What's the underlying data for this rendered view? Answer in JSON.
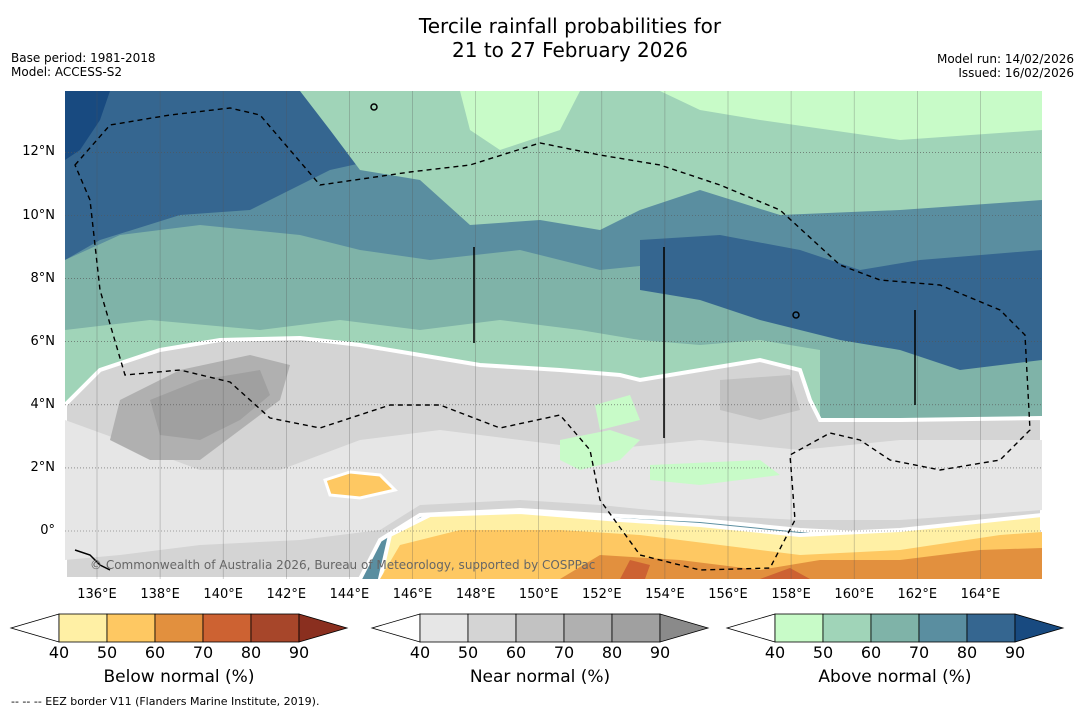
{
  "title": {
    "line1": "Tercile rainfall probabilities for",
    "line2": "21 to 27 February 2026"
  },
  "info_left": {
    "base_period": "Base period: 1981-2018",
    "model": "Model: ACCESS-S2"
  },
  "info_right": {
    "model_run": "Model run: 14/02/2026",
    "issued": "Issued: 16/02/2026"
  },
  "axes": {
    "lon_labels": [
      "136°E",
      "138°E",
      "140°E",
      "142°E",
      "144°E",
      "146°E",
      "148°E",
      "150°E",
      "152°E",
      "154°E",
      "156°E",
      "158°E",
      "160°E",
      "162°E",
      "164°E"
    ],
    "lat_labels": [
      "12°N",
      "10°N",
      "8°N",
      "6°N",
      "4°N",
      "2°N",
      "0°"
    ]
  },
  "copyright": "© Commonwealth of Australia 2026, Bureau of Meteorology, supported by COSPPac",
  "colorbars": [
    {
      "title": "Below normal (%)",
      "ticks": [
        "40",
        "50",
        "60",
        "70",
        "80",
        "90"
      ],
      "colors": [
        "#fff0a5",
        "#fec862",
        "#e2903e",
        "#cd6232",
        "#a7462a",
        "#8a2f1f"
      ]
    },
    {
      "title": "Near normal (%)",
      "ticks": [
        "40",
        "50",
        "60",
        "70",
        "80",
        "90"
      ],
      "colors": [
        "#e6e6e6",
        "#d4d4d4",
        "#c2c2c2",
        "#b0b0b0",
        "#a0a0a0",
        "#8a8a8a"
      ]
    },
    {
      "title": "Above normal (%)",
      "ticks": [
        "40",
        "50",
        "60",
        "70",
        "80",
        "90"
      ],
      "colors": [
        "#c8fbc8",
        "#a0d4b8",
        "#7fb3a8",
        "#5a8ea0",
        "#356690",
        "#184a80"
      ]
    }
  ],
  "footnote": "--  --  -- EEZ border V11 (Flanders Marine Institute, 2019)."
}
